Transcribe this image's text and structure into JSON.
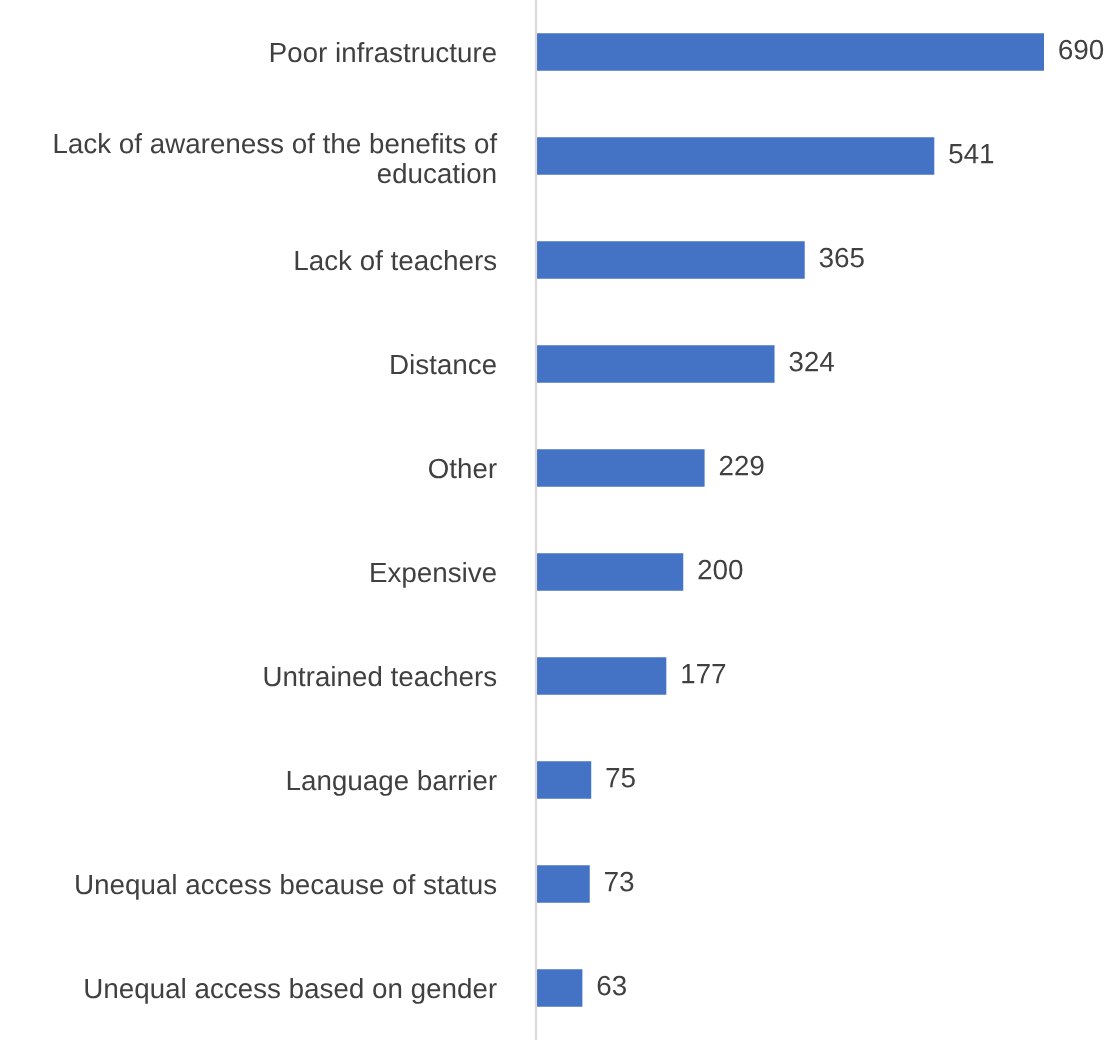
{
  "chart_data": {
    "type": "bar",
    "orientation": "horizontal",
    "data_labels": true,
    "grid": false,
    "legend": false,
    "color": "#4472c4",
    "categories": [
      "Poor infrastructure",
      "Lack of awareness of the benefits of\neducation",
      "Lack of teachers",
      "Distance",
      "Other",
      "Expensive",
      "Untrained teachers",
      "Language barrier",
      "Unequal access because of status",
      "Unequal access based on gender"
    ],
    "values": [
      690,
      541,
      365,
      324,
      229,
      200,
      177,
      75,
      73,
      63
    ]
  }
}
